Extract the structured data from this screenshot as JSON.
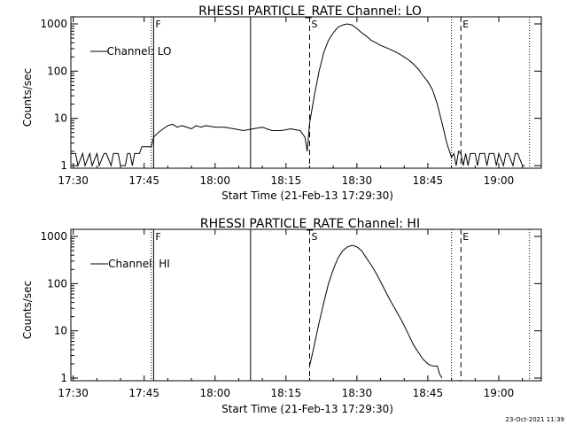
{
  "chart_data": [
    {
      "type": "line",
      "title": "RHESSI PARTICLE_RATE Channel: LO",
      "xlabel": "Start Time (21-Feb-13 17:29:30)",
      "ylabel": "Counts/sec",
      "yscale": "log",
      "xlim": [
        "17:29:30",
        "19:09:00"
      ],
      "ylim": [
        1,
        1000
      ],
      "x_ticks": [
        "17:30",
        "17:45",
        "18:00",
        "18:15",
        "18:30",
        "18:45",
        "19:00"
      ],
      "y_ticks": [
        "1",
        "10",
        "100",
        "1000"
      ],
      "legend": {
        "label": "Channel: LO",
        "position": "top-left"
      },
      "vlines": [
        {
          "x": "17:46:30",
          "style": "dotted",
          "label": ""
        },
        {
          "x": "17:47:00",
          "style": "solid",
          "label": "F"
        },
        {
          "x": "18:07:30",
          "style": "solid",
          "label": ""
        },
        {
          "x": "18:20:00",
          "style": "dashed",
          "label": "S"
        },
        {
          "x": "18:50:00",
          "style": "dotted",
          "label": ""
        },
        {
          "x": "18:52:00",
          "style": "dashed",
          "label": "E"
        },
        {
          "x": "19:06:30",
          "style": "dotted",
          "label": ""
        }
      ],
      "series": [
        {
          "name": "Channel: LO",
          "x": [
            "17:29:30",
            "17:30:30",
            "17:31:00",
            "17:32:00",
            "17:32:30",
            "17:33:30",
            "17:34:00",
            "17:35:00",
            "17:35:30",
            "17:36:30",
            "17:37:00",
            "17:38:00",
            "17:38:30",
            "17:39:30",
            "17:40:00",
            "17:41:00",
            "17:41:30",
            "17:42:00",
            "17:42:30",
            "17:43:00",
            "17:44:00",
            "17:44:30",
            "17:45:00",
            "17:46:00",
            "17:46:30",
            "17:47:00",
            "17:48:00",
            "17:49:00",
            "17:50:00",
            "17:51:00",
            "17:52:00",
            "17:53:00",
            "17:54:00",
            "17:55:00",
            "17:56:00",
            "17:57:00",
            "17:58:00",
            "18:00:00",
            "18:02:00",
            "18:04:00",
            "18:06:00",
            "18:08:00",
            "18:10:00",
            "18:12:00",
            "18:14:00",
            "18:16:00",
            "18:18:00",
            "18:19:00",
            "18:19:30",
            "18:20:00",
            "18:21:00",
            "18:22:00",
            "18:23:00",
            "18:24:00",
            "18:25:00",
            "18:26:00",
            "18:27:00",
            "18:28:00",
            "18:29:00",
            "18:30:00",
            "18:31:00",
            "18:32:00",
            "18:33:00",
            "18:34:00",
            "18:35:00",
            "18:36:00",
            "18:37:00",
            "18:38:00",
            "18:39:00",
            "18:40:00",
            "18:41:00",
            "18:42:00",
            "18:43:00",
            "18:44:00",
            "18:45:00",
            "18:46:00",
            "18:47:00",
            "18:48:00",
            "18:49:00",
            "18:50:00",
            "18:50:30",
            "18:51:00",
            "18:51:30",
            "18:52:00",
            "18:52:30",
            "18:53:00",
            "18:53:30",
            "18:54:00",
            "18:55:00",
            "18:55:30",
            "18:56:00",
            "18:57:00",
            "18:57:30",
            "18:58:00",
            "18:59:00",
            "18:59:30",
            "19:00:00",
            "19:01:00",
            "19:01:30",
            "19:02:00",
            "19:03:00",
            "19:03:30",
            "19:04:00",
            "19:05:00",
            "19:05:30"
          ],
          "values": [
            1.8,
            1.8,
            1,
            1.8,
            1,
            1.8,
            1,
            1.8,
            1,
            1.8,
            1.8,
            1,
            1.8,
            1.8,
            1,
            1,
            1.8,
            1.8,
            1,
            1.8,
            1.8,
            2.5,
            2.5,
            2.5,
            2.5,
            4,
            5,
            6,
            7,
            7.5,
            6.5,
            7,
            6.5,
            6,
            7,
            6.5,
            7,
            6.5,
            6.5,
            6,
            5.5,
            6,
            6.5,
            5.5,
            5.5,
            6,
            5.5,
            4,
            2,
            8,
            30,
            100,
            250,
            450,
            650,
            850,
            950,
            1000,
            950,
            800,
            650,
            550,
            450,
            400,
            350,
            320,
            290,
            260,
            230,
            200,
            170,
            140,
            110,
            80,
            60,
            40,
            20,
            8,
            3,
            1.5,
            1.8,
            1,
            2,
            1.8,
            1,
            1.8,
            1,
            1.8,
            1.8,
            1,
            1.8,
            1.8,
            1,
            1.8,
            1.8,
            1,
            1.8,
            1,
            1.8,
            1.8,
            1,
            1.8,
            1.8,
            1,
            1
          ]
        }
      ]
    },
    {
      "type": "line",
      "title": "RHESSI PARTICLE_RATE Channel: HI",
      "xlabel": "Start Time (21-Feb-13 17:29:30)",
      "ylabel": "Counts/sec",
      "yscale": "log",
      "xlim": [
        "17:29:30",
        "19:09:00"
      ],
      "ylim": [
        1,
        1000
      ],
      "x_ticks": [
        "17:30",
        "17:45",
        "18:00",
        "18:15",
        "18:30",
        "18:45",
        "19:00"
      ],
      "y_ticks": [
        "1",
        "10",
        "100",
        "1000"
      ],
      "legend": {
        "label": "Channel: HI",
        "position": "top-left"
      },
      "vlines": [
        {
          "x": "17:46:30",
          "style": "dotted",
          "label": ""
        },
        {
          "x": "17:47:00",
          "style": "solid",
          "label": "F"
        },
        {
          "x": "18:07:30",
          "style": "solid",
          "label": ""
        },
        {
          "x": "18:20:00",
          "style": "dashed",
          "label": "S"
        },
        {
          "x": "18:50:00",
          "style": "dotted",
          "label": ""
        },
        {
          "x": "18:52:00",
          "style": "dashed",
          "label": "E"
        },
        {
          "x": "19:06:30",
          "style": "dotted",
          "label": ""
        }
      ],
      "series": [
        {
          "name": "Channel: HI",
          "x": [
            "18:20:00",
            "18:21:00",
            "18:22:00",
            "18:23:00",
            "18:24:00",
            "18:25:00",
            "18:26:00",
            "18:27:00",
            "18:28:00",
            "18:29:00",
            "18:30:00",
            "18:31:00",
            "18:32:00",
            "18:33:00",
            "18:34:00",
            "18:35:00",
            "18:36:00",
            "18:37:00",
            "18:38:00",
            "18:39:00",
            "18:40:00",
            "18:41:00",
            "18:42:00",
            "18:43:00",
            "18:44:00",
            "18:45:00",
            "18:46:00",
            "18:47:00",
            "18:47:30",
            "18:48:00"
          ],
          "values": [
            1.8,
            5,
            15,
            40,
            100,
            200,
            350,
            500,
            600,
            650,
            600,
            500,
            350,
            250,
            170,
            110,
            70,
            45,
            30,
            20,
            13,
            8,
            5,
            3.5,
            2.5,
            2,
            1.8,
            1.8,
            1.2,
            1
          ]
        }
      ]
    }
  ],
  "timestamp": "23-Oct-2021 11:39"
}
